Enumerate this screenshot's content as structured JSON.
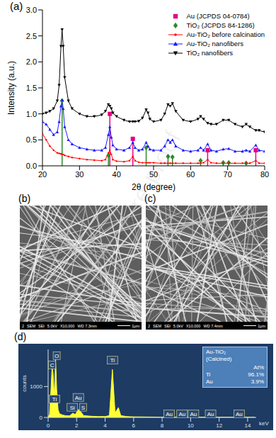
{
  "watermark": "Journal Pre-proof",
  "chart_data": [
    {
      "type": "line",
      "title": "(a)",
      "x_label": "2θ (degree)",
      "y_label": "Intensity (a.u.)",
      "xlim": [
        20,
        80
      ],
      "xticks": [
        20,
        30,
        40,
        50,
        60,
        70,
        80
      ],
      "ylim": [
        0,
        3
      ],
      "yticks": [
        {
          "value": 0,
          "label": "0.0"
        },
        0.5,
        {
          "value": 1,
          "label": "1.0"
        },
        1.5,
        {
          "value": 2,
          "label": "2.0"
        },
        2.5,
        {
          "value": 3,
          "label": "3.0"
        }
      ],
      "legend": "top-right",
      "grid": false,
      "x": [
        20,
        21,
        22,
        23,
        24,
        24.5,
        25,
        25.3,
        25.6,
        26,
        27,
        28,
        30,
        32,
        34,
        36,
        37,
        37.8,
        38.2,
        38.6,
        39,
        40,
        42,
        43.5,
        44.4,
        45,
        46,
        47,
        48,
        48.5,
        49,
        50,
        52,
        53,
        53.9,
        54.5,
        55.1,
        56,
        58,
        60,
        62,
        62.7,
        63.5,
        64.6,
        65.5,
        67,
        68.8,
        70.3,
        72,
        74,
        75,
        76,
        77.6,
        78.5,
        80
      ],
      "series": [
        {
          "name": "Au (JCPDS 04-0784)",
          "type": "stem",
          "color": "#e6007e",
          "marker": "square",
          "x": [
            38.2,
            44.4,
            64.6,
            77.6
          ],
          "values": [
            1.0,
            0.52,
            0.3,
            0.3
          ]
        },
        {
          "name": "TiO₂ (JCPDS 84-1286)",
          "type": "stem",
          "color": "#2e8b2e",
          "marker": "diamond",
          "x": [
            25.3,
            37.8,
            48.0,
            53.9,
            55.1,
            62.7,
            68.8,
            70.3,
            75.0
          ],
          "values": [
            1.25,
            0.2,
            0.35,
            0.18,
            0.17,
            0.1,
            0.06,
            0.06,
            0.05
          ]
        },
        {
          "name": "Au-TiO₂ before calcination",
          "type": "line",
          "color": "#ff0000",
          "marker": "dot",
          "line_style": "solid",
          "values": [
            0.62,
            0.5,
            0.38,
            0.3,
            0.25,
            0.24,
            0.23,
            0.22,
            0.22,
            0.2,
            0.18,
            0.16,
            0.14,
            0.12,
            0.11,
            0.1,
            0.12,
            0.25,
            0.3,
            0.22,
            0.12,
            0.09,
            0.08,
            0.1,
            0.18,
            0.1,
            0.07,
            0.06,
            0.06,
            0.06,
            0.06,
            0.06,
            0.05,
            0.05,
            0.05,
            0.05,
            0.05,
            0.05,
            0.05,
            0.05,
            0.05,
            0.05,
            0.06,
            0.12,
            0.06,
            0.05,
            0.05,
            0.05,
            0.05,
            0.05,
            0.05,
            0.05,
            0.1,
            0.05,
            0.05
          ]
        },
        {
          "name": "Au-TiO₂ nanofibers",
          "type": "line",
          "color": "#1a1aff",
          "marker": "triangle",
          "line_style": "solid",
          "values": [
            0.85,
            0.8,
            0.7,
            0.6,
            0.65,
            0.85,
            1.15,
            1.27,
            1.1,
            0.75,
            0.5,
            0.42,
            0.35,
            0.32,
            0.3,
            0.3,
            0.35,
            0.6,
            0.75,
            0.55,
            0.4,
            0.32,
            0.3,
            0.35,
            0.45,
            0.35,
            0.3,
            0.32,
            0.45,
            0.38,
            0.32,
            0.3,
            0.3,
            0.38,
            0.5,
            0.45,
            0.5,
            0.38,
            0.3,
            0.28,
            0.3,
            0.35,
            0.3,
            0.42,
            0.3,
            0.28,
            0.32,
            0.33,
            0.28,
            0.28,
            0.3,
            0.28,
            0.4,
            0.3,
            0.28
          ]
        },
        {
          "name": "TiO₂ nanofibers",
          "type": "line",
          "color": "#000000",
          "marker": "triangle-down",
          "line_style": "solid",
          "values": [
            1.0,
            1.02,
            1.05,
            1.1,
            1.25,
            1.55,
            2.3,
            2.62,
            2.3,
            1.7,
            1.25,
            1.1,
            1.0,
            0.95,
            0.95,
            0.98,
            1.05,
            1.18,
            1.15,
            1.1,
            1.02,
            0.95,
            0.88,
            0.85,
            0.85,
            0.85,
            0.86,
            0.92,
            1.08,
            1.02,
            0.9,
            0.85,
            0.88,
            1.0,
            1.18,
            1.15,
            1.2,
            1.05,
            0.88,
            0.85,
            0.9,
            0.95,
            0.9,
            0.82,
            0.8,
            0.8,
            0.88,
            0.88,
            0.8,
            0.75,
            0.8,
            0.75,
            0.68,
            0.68,
            0.65
          ]
        }
      ]
    },
    {
      "type": "area",
      "title": "(d)",
      "x_label": "keV",
      "y_label": "counts",
      "color": "#ffff33",
      "grid": false,
      "xlim": [
        0,
        14.6
      ],
      "xticks": [
        0,
        2,
        4,
        6,
        8,
        10,
        12,
        14
      ],
      "ylim": [
        0,
        2200
      ],
      "yticks": [
        0,
        1000
      ],
      "x": [
        0,
        0.1,
        0.2,
        0.28,
        0.35,
        0.45,
        0.52,
        0.6,
        0.7,
        0.8,
        1.0,
        1.2,
        1.5,
        1.74,
        1.9,
        2.12,
        2.2,
        2.31,
        2.5,
        3,
        3.5,
        4,
        4.3,
        4.51,
        4.7,
        4.93,
        5.1,
        5.5,
        6,
        7,
        8,
        8.5,
        9,
        9.7,
        10,
        11,
        11.4,
        12,
        13,
        13.4,
        14,
        14.5
      ],
      "values": [
        0,
        100,
        900,
        1650,
        1400,
        600,
        1950,
        900,
        250,
        120,
        80,
        60,
        50,
        140,
        90,
        260,
        230,
        170,
        60,
        40,
        30,
        30,
        60,
        1550,
        150,
        320,
        60,
        30,
        20,
        15,
        10,
        15,
        10,
        15,
        12,
        10,
        12,
        8,
        8,
        10,
        8,
        5
      ],
      "annotations": [
        {
          "text": "C",
          "x": 0.28,
          "y": 1700
        },
        {
          "text": "O",
          "x": 0.6,
          "y": 2000
        },
        {
          "text": "Ti",
          "x": 0.45,
          "y": 600
        },
        {
          "text": "Si",
          "x": 1.7,
          "y": 330
        },
        {
          "text": "Au",
          "x": 2.12,
          "y": 650
        },
        {
          "text": "S",
          "x": 2.45,
          "y": 330
        },
        {
          "text": "Ti",
          "x": 4.51,
          "y": 1850
        },
        {
          "text": "Au",
          "x": 8.5,
          "y": 120
        },
        {
          "text": "Au",
          "x": 9.4,
          "y": 120
        },
        {
          "text": "Au",
          "x": 10.2,
          "y": 120
        },
        {
          "text": "Au",
          "x": 11.4,
          "y": 120
        },
        {
          "text": "Au",
          "x": 13.4,
          "y": 120
        }
      ],
      "inset": {
        "title": "Au-TiO₂",
        "subtitle": "(Calcined)",
        "header": "At%",
        "rows": [
          [
            "Ti",
            "96.1%"
          ],
          [
            "Au",
            "3.9%"
          ]
        ]
      }
    }
  ],
  "images": [
    {
      "title": "(b)",
      "info": [
        "2",
        "SEM",
        "SEI",
        "5.0kV",
        "X10,000",
        "WD 7.3mm"
      ],
      "scale_bar": "1μm"
    },
    {
      "title": "(c)",
      "info": [
        "2",
        "SEM",
        "SEI",
        "5.0kV",
        "X10,000",
        "WD 7.4mm"
      ],
      "scale_bar": "1μm"
    }
  ]
}
